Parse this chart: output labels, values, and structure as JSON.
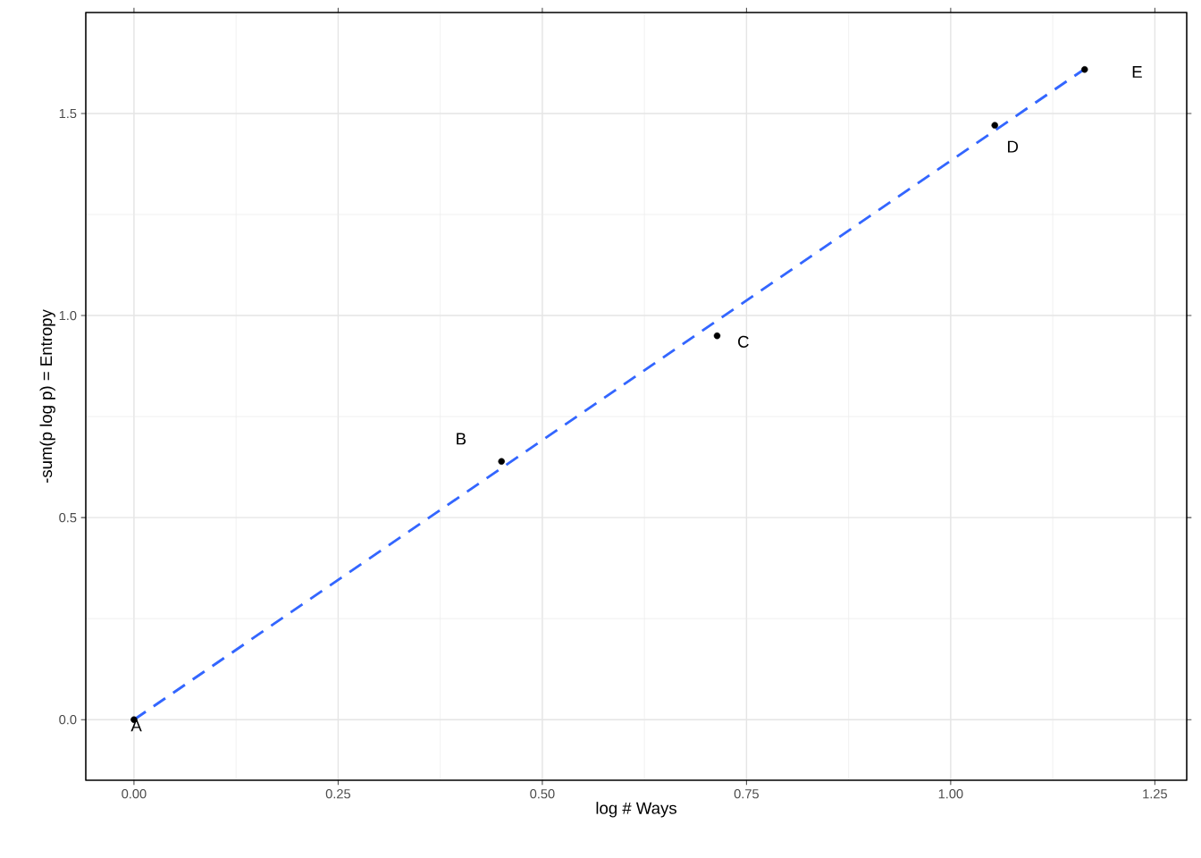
{
  "chart_data": {
    "type": "scatter",
    "xlabel": "log # Ways",
    "ylabel": "-sum(p log p) = Entropy",
    "xlim": [
      -0.059,
      1.289
    ],
    "ylim": [
      -0.15,
      1.75
    ],
    "xticks": [
      {
        "value": 0,
        "label": "0.00"
      },
      {
        "value": 0.25,
        "label": "0.25"
      },
      {
        "value": 0.5,
        "label": "0.50"
      },
      {
        "value": 0.75,
        "label": "0.75"
      },
      {
        "value": 1,
        "label": "1.00"
      },
      {
        "value": 1.25,
        "label": "1.25"
      }
    ],
    "yticks": [
      {
        "value": 0,
        "label": "0.0"
      },
      {
        "value": 0.5,
        "label": "0.5"
      },
      {
        "value": 1,
        "label": "1.0"
      },
      {
        "value": 1.5,
        "label": "1.5"
      }
    ],
    "grid": true,
    "series": [
      {
        "color": "#000000",
        "marker": "circle",
        "x": [
          0,
          0.45,
          0.714,
          1.054,
          1.164
        ],
        "values": [
          0,
          0.639,
          0.95,
          1.471,
          1.609
        ]
      },
      {
        "type": "line",
        "color": "#3366ff",
        "line_style": "dashed",
        "marker": "none",
        "x": [
          0,
          1.164
        ],
        "values": [
          0,
          1.61
        ]
      }
    ],
    "annotations": [
      {
        "text": "A",
        "x": 0,
        "y": 0
      },
      {
        "text": "B",
        "x": 0.45,
        "y": 0.639
      },
      {
        "text": "C",
        "x": 0.714,
        "y": 0.95
      },
      {
        "text": "D",
        "x": 1.054,
        "y": 1.471
      },
      {
        "text": "E",
        "x": 1.164,
        "y": 1.609
      }
    ]
  }
}
